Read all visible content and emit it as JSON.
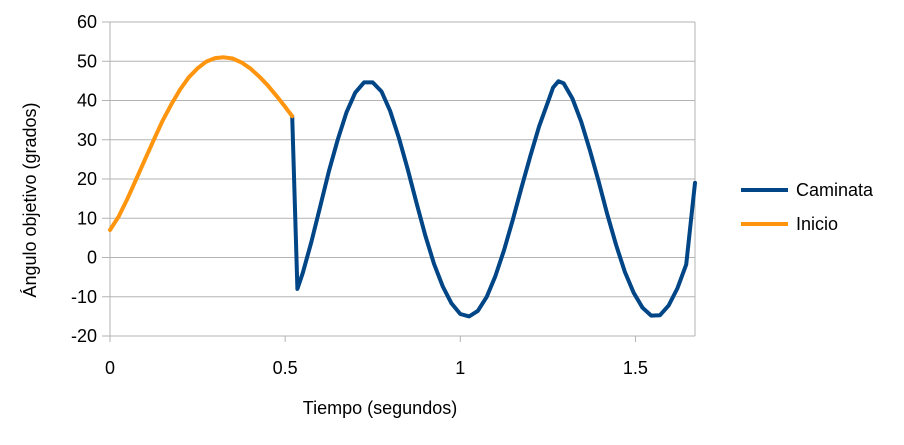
{
  "chart_data": {
    "type": "line",
    "title": "",
    "xlabel": "Tiempo (segundos)",
    "ylabel": "Ángulo objetivo (grados)",
    "xlim": [
      0,
      1.67
    ],
    "ylim": [
      -20,
      60
    ],
    "xticks": [
      0,
      0.5,
      1,
      1.5
    ],
    "xtick_labels": [
      "0",
      "0.5",
      "1",
      "1.5"
    ],
    "yticks": [
      -20,
      -10,
      0,
      10,
      20,
      30,
      40,
      50,
      60
    ],
    "ytick_labels": [
      "-20",
      "-10",
      "0",
      "10",
      "20",
      "30",
      "40",
      "50",
      "60"
    ],
    "grid": "horizontal",
    "legend_position": "right",
    "series": [
      {
        "name": "Caminata",
        "color": "#004586",
        "points": [
          [
            0.52,
            36
          ],
          [
            0.535,
            -8
          ],
          [
            0.55,
            -4
          ],
          [
            0.575,
            4
          ],
          [
            0.6,
            13
          ],
          [
            0.625,
            22
          ],
          [
            0.65,
            30
          ],
          [
            0.675,
            37
          ],
          [
            0.7,
            42
          ],
          [
            0.725,
            44.6
          ],
          [
            0.75,
            44.6
          ],
          [
            0.775,
            42.3
          ],
          [
            0.8,
            37.3
          ],
          [
            0.825,
            30.4
          ],
          [
            0.85,
            22.4
          ],
          [
            0.875,
            13.9
          ],
          [
            0.9,
            5.6
          ],
          [
            0.925,
            -1.6
          ],
          [
            0.95,
            -7.4
          ],
          [
            0.975,
            -11.7
          ],
          [
            1.0,
            -14.4
          ],
          [
            1.025,
            -15
          ],
          [
            1.05,
            -13.6
          ],
          [
            1.075,
            -10.1
          ],
          [
            1.1,
            -4.8
          ],
          [
            1.125,
            1.9
          ],
          [
            1.15,
            9.6
          ],
          [
            1.175,
            17.9
          ],
          [
            1.2,
            25.9
          ],
          [
            1.225,
            33.4
          ],
          [
            1.25,
            39.6
          ],
          [
            1.265,
            43.3
          ],
          [
            1.28,
            44.9
          ],
          [
            1.295,
            44.4
          ],
          [
            1.32,
            40.5
          ],
          [
            1.345,
            34.6
          ],
          [
            1.37,
            27.3
          ],
          [
            1.395,
            19.3
          ],
          [
            1.42,
            10.9
          ],
          [
            1.445,
            3.1
          ],
          [
            1.47,
            -3.7
          ],
          [
            1.495,
            -9.0
          ],
          [
            1.52,
            -12.8
          ],
          [
            1.545,
            -14.8
          ],
          [
            1.57,
            -14.7
          ],
          [
            1.595,
            -12.2
          ],
          [
            1.62,
            -7.8
          ],
          [
            1.645,
            -1.8
          ],
          [
            1.67,
            19
          ]
        ]
      },
      {
        "name": "Inicio",
        "color": "#ff950e",
        "points": [
          [
            0.0,
            7
          ],
          [
            0.025,
            10.5
          ],
          [
            0.05,
            15
          ],
          [
            0.075,
            20
          ],
          [
            0.1,
            25
          ],
          [
            0.125,
            30
          ],
          [
            0.15,
            34.8
          ],
          [
            0.175,
            39
          ],
          [
            0.2,
            42.8
          ],
          [
            0.225,
            45.9
          ],
          [
            0.25,
            48.2
          ],
          [
            0.275,
            49.9
          ],
          [
            0.3,
            50.8
          ],
          [
            0.325,
            51.0
          ],
          [
            0.35,
            50.7
          ],
          [
            0.375,
            49.7
          ],
          [
            0.4,
            48.2
          ],
          [
            0.425,
            46.2
          ],
          [
            0.45,
            43.9
          ],
          [
            0.475,
            41.2
          ],
          [
            0.5,
            38.4
          ],
          [
            0.52,
            36
          ]
        ]
      }
    ]
  }
}
